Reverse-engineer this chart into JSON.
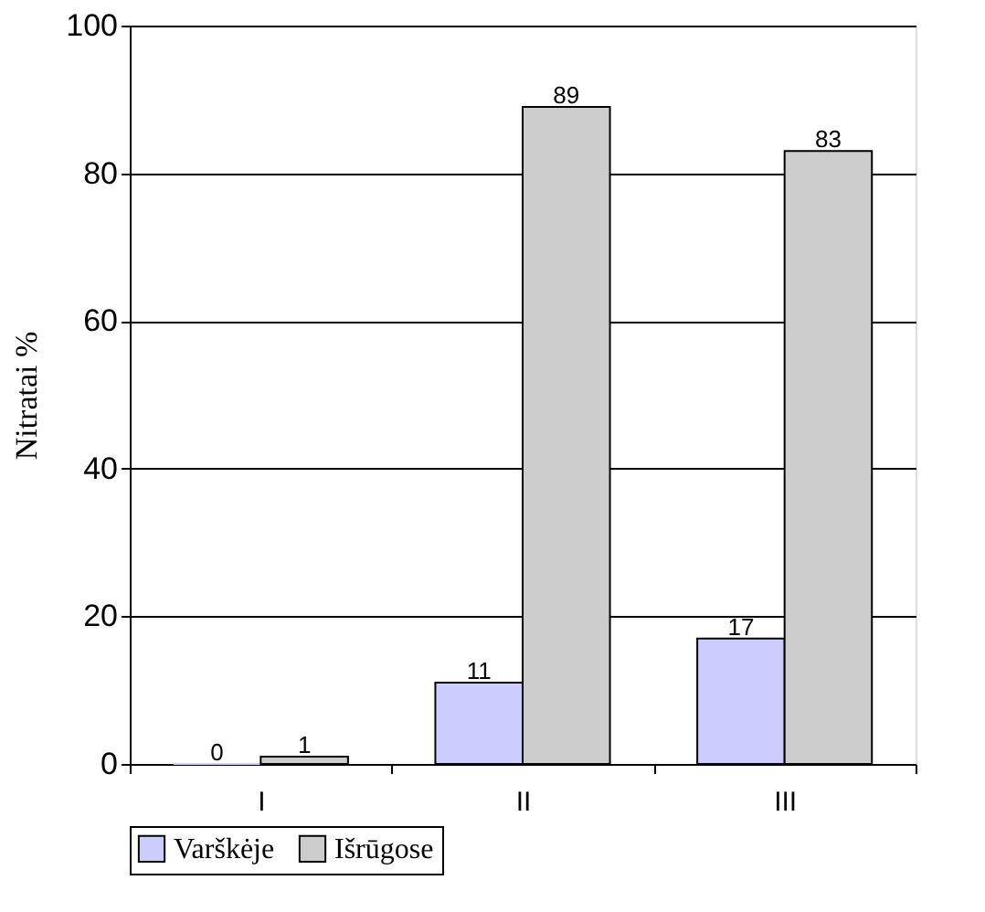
{
  "chart_data": {
    "type": "bar",
    "ylabel": "Nitratai  %",
    "categories": [
      "I",
      "II",
      "III"
    ],
    "series": [
      {
        "name": "Varškėje",
        "color": "#ccccff",
        "values": [
          0,
          11,
          17
        ]
      },
      {
        "name": "Išrūgose",
        "color": "#cccccc",
        "values": [
          1,
          89,
          83
        ]
      }
    ],
    "ylim": [
      0,
      100
    ],
    "yticks": [
      0,
      20,
      40,
      60,
      80,
      100
    ],
    "grid": "y",
    "legend": "bottom",
    "data_labels": true
  }
}
